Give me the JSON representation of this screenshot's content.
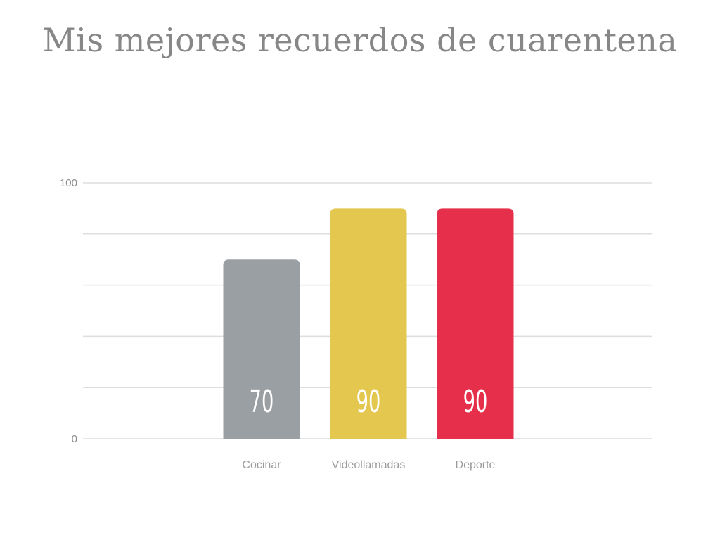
{
  "chart_data": {
    "type": "bar",
    "title": "Mis mejores recuerdos de cuarentena",
    "categories": [
      "Cocinar",
      "Videollamadas",
      "Deporte"
    ],
    "values": [
      70,
      90,
      90
    ],
    "value_labels": [
      "70",
      "90",
      "90"
    ],
    "colors": [
      "#9a9fa3",
      "#e3c74e",
      "#e6304b"
    ],
    "ylim": [
      0,
      100
    ],
    "y_ticks": [
      "0",
      "100"
    ],
    "gridlines": 5,
    "grid": true,
    "xlabel": "",
    "ylabel": ""
  }
}
